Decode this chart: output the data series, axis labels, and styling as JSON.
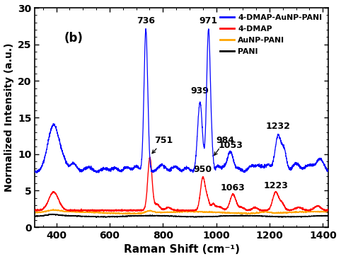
{
  "xlim": [
    320,
    1420
  ],
  "ylim": [
    0,
    30
  ],
  "xlabel": "Raman Shift (cm⁻¹)",
  "ylabel": "Normalized Intensity (a.u.)",
  "label_b": "(b)",
  "legend_labels": [
    "4-DMAP-AuNP-PANI",
    "4-DMAP",
    "AuNP-PANI",
    "PANI"
  ],
  "legend_colors": [
    "#0000FF",
    "#FF0000",
    "#FFA500",
    "#000000"
  ],
  "axis_fontsize": 11,
  "tick_fontsize": 10,
  "annot_fontsize": 9,
  "xticks": [
    400,
    600,
    800,
    1000,
    1200,
    1400
  ],
  "yticks": [
    0,
    5,
    10,
    15,
    20,
    25,
    30
  ],
  "blue_baseline": 7.5,
  "red_baseline": 2.3,
  "orange_baseline": 2.0,
  "black_baseline": 1.5
}
